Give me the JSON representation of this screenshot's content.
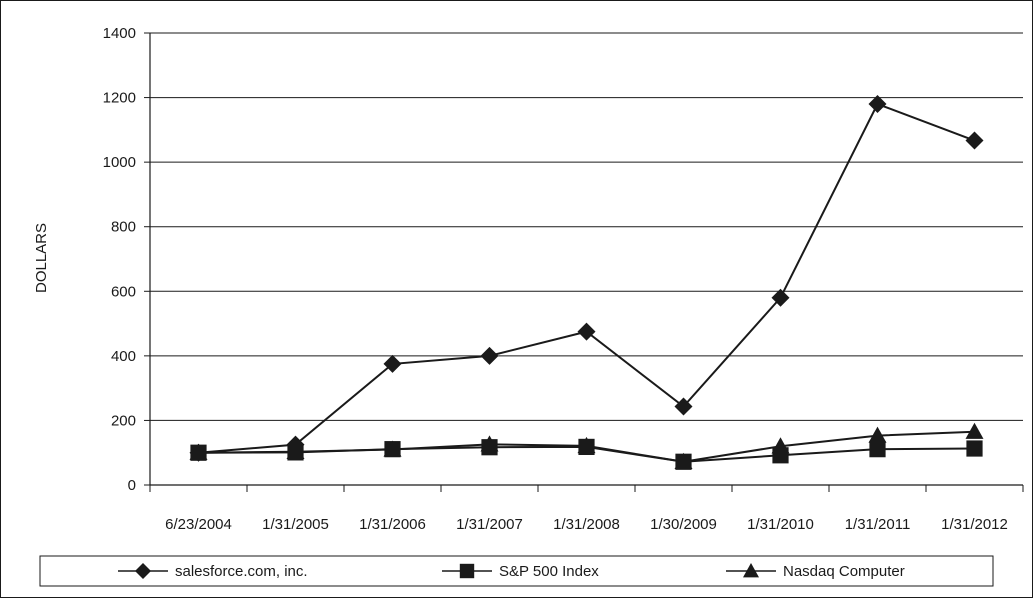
{
  "chart_data": {
    "type": "line",
    "ylabel": "DOLLARS",
    "xlabel": "",
    "ylim": [
      0,
      1400
    ],
    "yticks": [
      "0",
      "200",
      "400",
      "600",
      "800",
      "1000",
      "1200",
      "1400"
    ],
    "categories": [
      "6/23/2004",
      "1/31/2005",
      "1/31/2006",
      "1/31/2007",
      "1/31/2008",
      "1/30/2009",
      "1/31/2010",
      "1/31/2011",
      "1/31/2012"
    ],
    "grid": "horizontal",
    "legend_position": "bottom",
    "series": [
      {
        "name": "salesforce.com, inc.",
        "marker": "diamond",
        "values": [
          100,
          125,
          375,
          400,
          475,
          243,
          580,
          1180,
          1067
        ]
      },
      {
        "name": "S&P 500 Index",
        "marker": "square",
        "values": [
          100,
          101,
          111,
          117,
          118,
          72,
          92,
          111,
          113
        ]
      },
      {
        "name": "Nasdaq Computer",
        "marker": "triangle",
        "values": [
          100,
          103,
          110,
          126,
          121,
          72,
          120,
          153,
          165
        ]
      }
    ],
    "colors": {
      "line": "#1a1a1a",
      "grid": "#1a1a1a",
      "frame": "#1a1a1a"
    }
  }
}
